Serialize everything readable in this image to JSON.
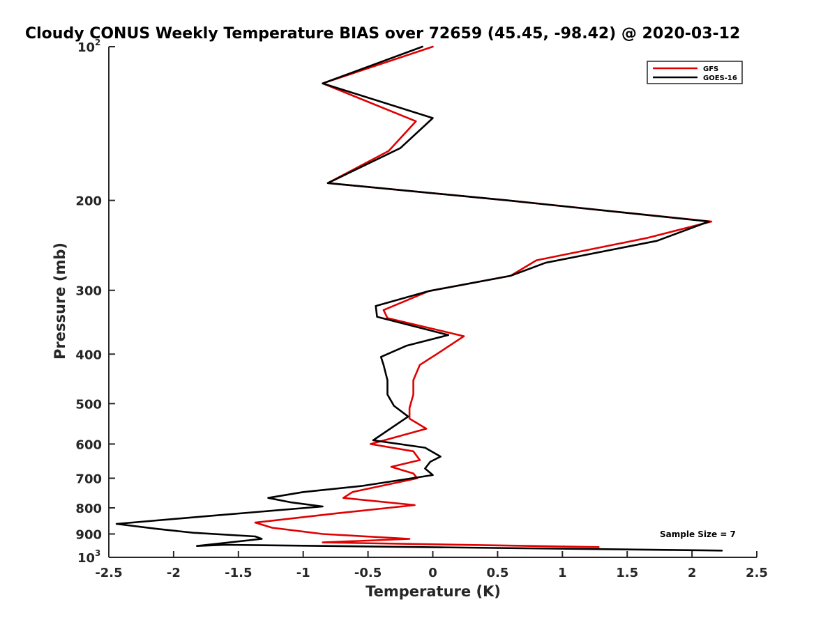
{
  "chart_data": {
    "type": "line",
    "title": "Cloudy CONUS Weekly Temperature BIAS over 72659 (45.45, -98.42) @ 2020-03-12",
    "xlabel": "Temperature (K)",
    "ylabel": "Pressure (mb)",
    "xlim": [
      -2.5,
      2.5
    ],
    "ylim": [
      100,
      1000
    ],
    "y_scale": "log",
    "y_reversed": true,
    "grid": false,
    "legend_position": "top-right",
    "x_ticks": [
      "-2.5",
      "-2",
      "-1.5",
      "-1",
      "-0.5",
      "0",
      "0.5",
      "1",
      "1.5",
      "2",
      "2.5"
    ],
    "y_ticks": [
      {
        "value": 100,
        "label": "10",
        "sup": "2"
      },
      {
        "value": 200,
        "label": "200"
      },
      {
        "value": 300,
        "label": "300"
      },
      {
        "value": 400,
        "label": "400"
      },
      {
        "value": 500,
        "label": "500"
      },
      {
        "value": 600,
        "label": "600"
      },
      {
        "value": 700,
        "label": "700"
      },
      {
        "value": 800,
        "label": "800"
      },
      {
        "value": 900,
        "label": "900"
      },
      {
        "value": 1000,
        "label": "10",
        "sup": "3"
      }
    ],
    "annotation": "Sample Size = 7",
    "series": [
      {
        "name": "GFS",
        "color": "#e00000",
        "x": [
          0.0,
          -0.85,
          -0.13,
          -0.34,
          -0.81,
          0.58,
          2.15,
          1.65,
          0.8,
          0.6,
          -0.03,
          -0.38,
          -0.35,
          0.24,
          0.03,
          -0.1,
          -0.15,
          -0.15,
          -0.18,
          -0.18,
          -0.05,
          -0.48,
          -0.15,
          -0.1,
          -0.32,
          -0.15,
          -0.12,
          -0.62,
          -0.69,
          -0.14,
          -0.74,
          -1.37,
          -1.24,
          -0.85,
          -0.18,
          -0.85,
          1.28
        ],
        "y": [
          100,
          118,
          140,
          160,
          185,
          200,
          220,
          237,
          262,
          281,
          301,
          328,
          340,
          369,
          400,
          420,
          450,
          480,
          510,
          535,
          560,
          600,
          620,
          645,
          665,
          685,
          700,
          745,
          765,
          790,
          820,
          855,
          875,
          900,
          920,
          935,
          955
        ]
      },
      {
        "name": "GOES-16",
        "color": "#000000",
        "x": [
          -0.08,
          -0.85,
          0.0,
          -0.25,
          -0.81,
          0.58,
          2.13,
          1.73,
          0.87,
          0.6,
          -0.03,
          -0.44,
          -0.43,
          0.12,
          -0.2,
          -0.4,
          -0.38,
          -0.35,
          -0.35,
          -0.3,
          -0.19,
          -0.46,
          -0.06,
          0.06,
          -0.02,
          -0.06,
          0.0,
          -0.55,
          -1.0,
          -1.27,
          -1.1,
          -0.85,
          -1.73,
          -2.44,
          -2.12,
          -1.85,
          -1.37,
          -1.32,
          -1.82,
          -1.6,
          2.23
        ],
        "y": [
          100,
          118,
          138,
          158,
          185,
          200,
          220,
          240,
          265,
          281,
          301,
          322,
          338,
          367,
          385,
          405,
          420,
          450,
          480,
          505,
          530,
          590,
          610,
          635,
          650,
          670,
          690,
          725,
          745,
          765,
          780,
          795,
          830,
          860,
          880,
          895,
          910,
          920,
          950,
          945,
          970
        ]
      }
    ]
  }
}
